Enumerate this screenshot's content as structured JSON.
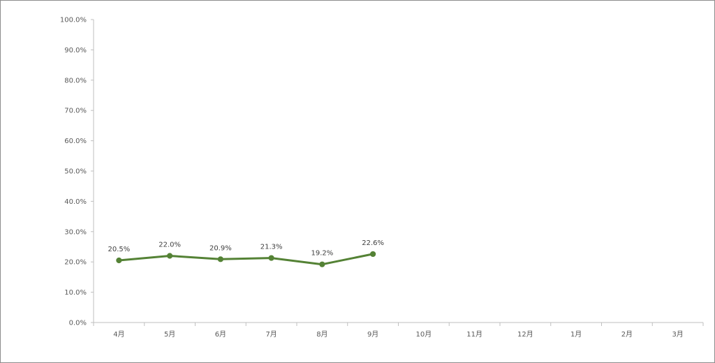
{
  "chart_data": {
    "type": "line",
    "title": "",
    "xlabel": "",
    "ylabel": "",
    "categories": [
      "4月",
      "5月",
      "6月",
      "7月",
      "8月",
      "9月",
      "10月",
      "11月",
      "12月",
      "1月",
      "2月",
      "3月"
    ],
    "series": [
      {
        "values": [
          20.5,
          22.0,
          20.9,
          21.3,
          19.2,
          22.6,
          null,
          null,
          null,
          null,
          null,
          null
        ],
        "data_labels": [
          "20.5%",
          "22.0%",
          "20.9%",
          "21.3%",
          "19.2%",
          "22.6%"
        ],
        "color": "#548235",
        "marker": "circle"
      }
    ],
    "ylim": [
      0,
      100
    ],
    "yticks": [
      "0.0%",
      "10.0%",
      "20.0%",
      "30.0%",
      "40.0%",
      "50.0%",
      "60.0%",
      "70.0%",
      "80.0%",
      "90.0%",
      "100.0%"
    ],
    "y_tick_values": [
      0,
      10,
      20,
      30,
      40,
      50,
      60,
      70,
      80,
      90,
      100
    ],
    "grid": false,
    "legend": "none",
    "axis_color": "#bfbfbf",
    "text_color": "#595959"
  }
}
